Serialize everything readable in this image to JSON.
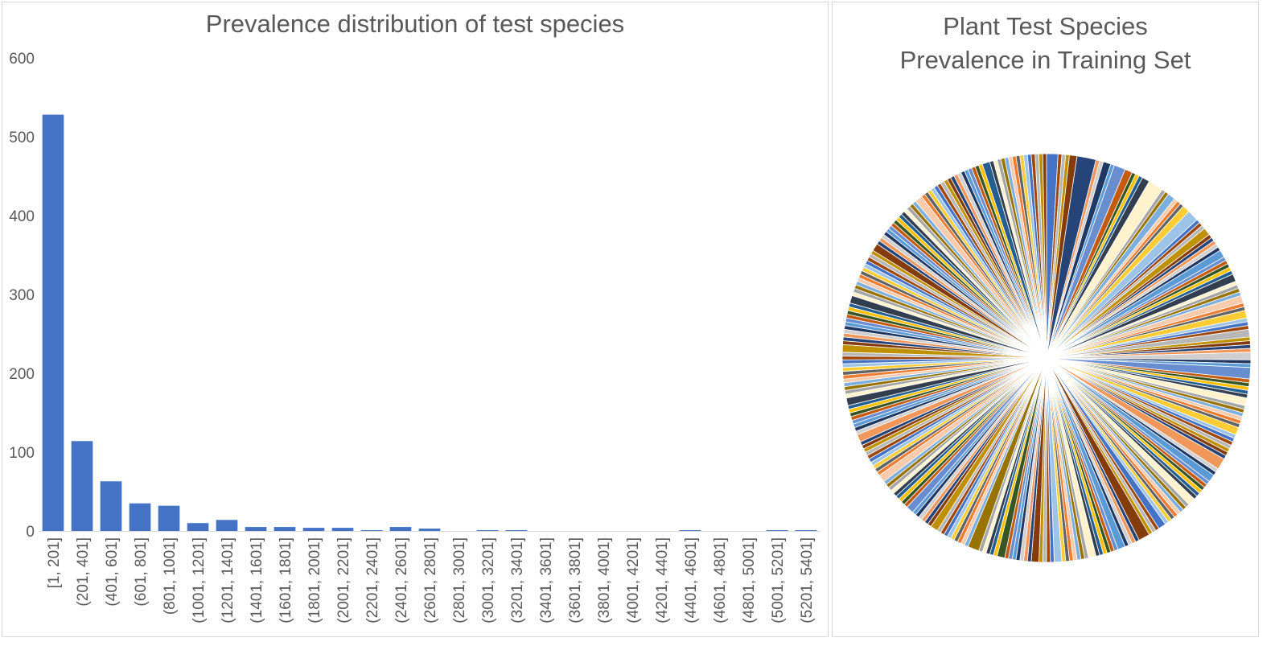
{
  "chart_data": [
    {
      "type": "bar",
      "title": "Prevalence distribution of test species",
      "xlabel": "",
      "ylabel": "",
      "ylim": [
        0,
        600
      ],
      "yticks": [
        0,
        100,
        200,
        300,
        400,
        500,
        600
      ],
      "grid": false,
      "categories": [
        "[1, 201]",
        "(201, 401]",
        "(401, 601]",
        "(601, 801]",
        "(801, 1001]",
        "(1001, 1201]",
        "(1201, 1401]",
        "(1401, 1601]",
        "(1601, 1801]",
        "(1801, 2001]",
        "(2001, 2201]",
        "(2201, 2401]",
        "(2401, 2601]",
        "(2601, 2801]",
        "(2801, 3001]",
        "(3001, 3201]",
        "(3201, 3401]",
        "(3401, 3601]",
        "(3601, 3801]",
        "(3801, 4001]",
        "(4001, 4201]",
        "(4201, 4401]",
        "(4401, 4601]",
        "(4601, 4801]",
        "(4801, 5001]",
        "(5001, 5201]",
        "(5201, 5401]"
      ],
      "values": [
        528,
        114,
        63,
        35,
        32,
        10,
        14,
        5,
        5,
        4,
        4,
        1,
        5,
        3,
        0,
        1,
        1,
        0,
        0,
        0,
        0,
        0,
        1,
        0,
        0,
        1,
        1
      ],
      "color": "#4472c4"
    },
    {
      "type": "pie",
      "title": "Plant Test Species",
      "subtitle": "Prevalence in Training Set",
      "legend": "none",
      "palette": [
        "#4472c4",
        "#ed7d31",
        "#a5a5a5",
        "#ffc000",
        "#5b9bd5",
        "#70ad47",
        "#264478",
        "#9e480e",
        "#636363",
        "#997300",
        "#255e91",
        "#43682b",
        "#698ed0",
        "#f1975a",
        "#b7b7b7",
        "#ffcd33",
        "#7cafdd",
        "#8cc168",
        "#333f50",
        "#c55a11",
        "#d0cece",
        "#bf9000",
        "#9dc3e6",
        "#a9d18e",
        "#f8cbad",
        "#fff2cc",
        "#375623",
        "#1f3864",
        "#843c0c",
        "#404040"
      ],
      "values": [
        3,
        1,
        1,
        1,
        2,
        5,
        1,
        1,
        2,
        1,
        3,
        2,
        1,
        1,
        1,
        2,
        4,
        1,
        1,
        2,
        1,
        1,
        1,
        2,
        3,
        1,
        1,
        1,
        2,
        1,
        1,
        1,
        1,
        1,
        2,
        1,
        1,
        1,
        1,
        1,
        2,
        1,
        1,
        1,
        1,
        2,
        1,
        1,
        2,
        1,
        1,
        1,
        2,
        1,
        1,
        1,
        1,
        2,
        1,
        1,
        3,
        1,
        1,
        1,
        1,
        1,
        2,
        1,
        1,
        1,
        1,
        1,
        1,
        2,
        1,
        1,
        1,
        1,
        1,
        1,
        1,
        3,
        1,
        1,
        2,
        1,
        1,
        1,
        1,
        1,
        1,
        2,
        1,
        1,
        1,
        1,
        1,
        1,
        1,
        1,
        2,
        1,
        1,
        1,
        3,
        1,
        1,
        1,
        1,
        2,
        1,
        1,
        1,
        1,
        1,
        1,
        2,
        1,
        1,
        1,
        1,
        1,
        1,
        1,
        2,
        1,
        1,
        1,
        1,
        2,
        1,
        1,
        1,
        1,
        1,
        1,
        1,
        2,
        1,
        1,
        1,
        1,
        1,
        3,
        1,
        1,
        1,
        1,
        1,
        1,
        1,
        1,
        1,
        2,
        1,
        1,
        1,
        1,
        1,
        1,
        2,
        1,
        1,
        1,
        1,
        1,
        1,
        1,
        1,
        1,
        2,
        1,
        1,
        1,
        1,
        1,
        1,
        1,
        1,
        1,
        1,
        2,
        1,
        1,
        1,
        1,
        1,
        1,
        1,
        1,
        2,
        1,
        1,
        1,
        1,
        1,
        1,
        1,
        1,
        1,
        1,
        1,
        1,
        2,
        1,
        1,
        1,
        1,
        1,
        1,
        1,
        1,
        1,
        1,
        1,
        2,
        1,
        1,
        1,
        1,
        1,
        1,
        1,
        1,
        1,
        1,
        1,
        1,
        1,
        2,
        1,
        1,
        1,
        1,
        1,
        1,
        1,
        1,
        1,
        1,
        1,
        1,
        1,
        1,
        1,
        2,
        1,
        1,
        1,
        1,
        1,
        1,
        1,
        1,
        1,
        1,
        1,
        1,
        1,
        1,
        1,
        1,
        1,
        1,
        2,
        1,
        1,
        1,
        1,
        1,
        1,
        1,
        1,
        1,
        1,
        1,
        1,
        1,
        1,
        1
      ]
    }
  ]
}
